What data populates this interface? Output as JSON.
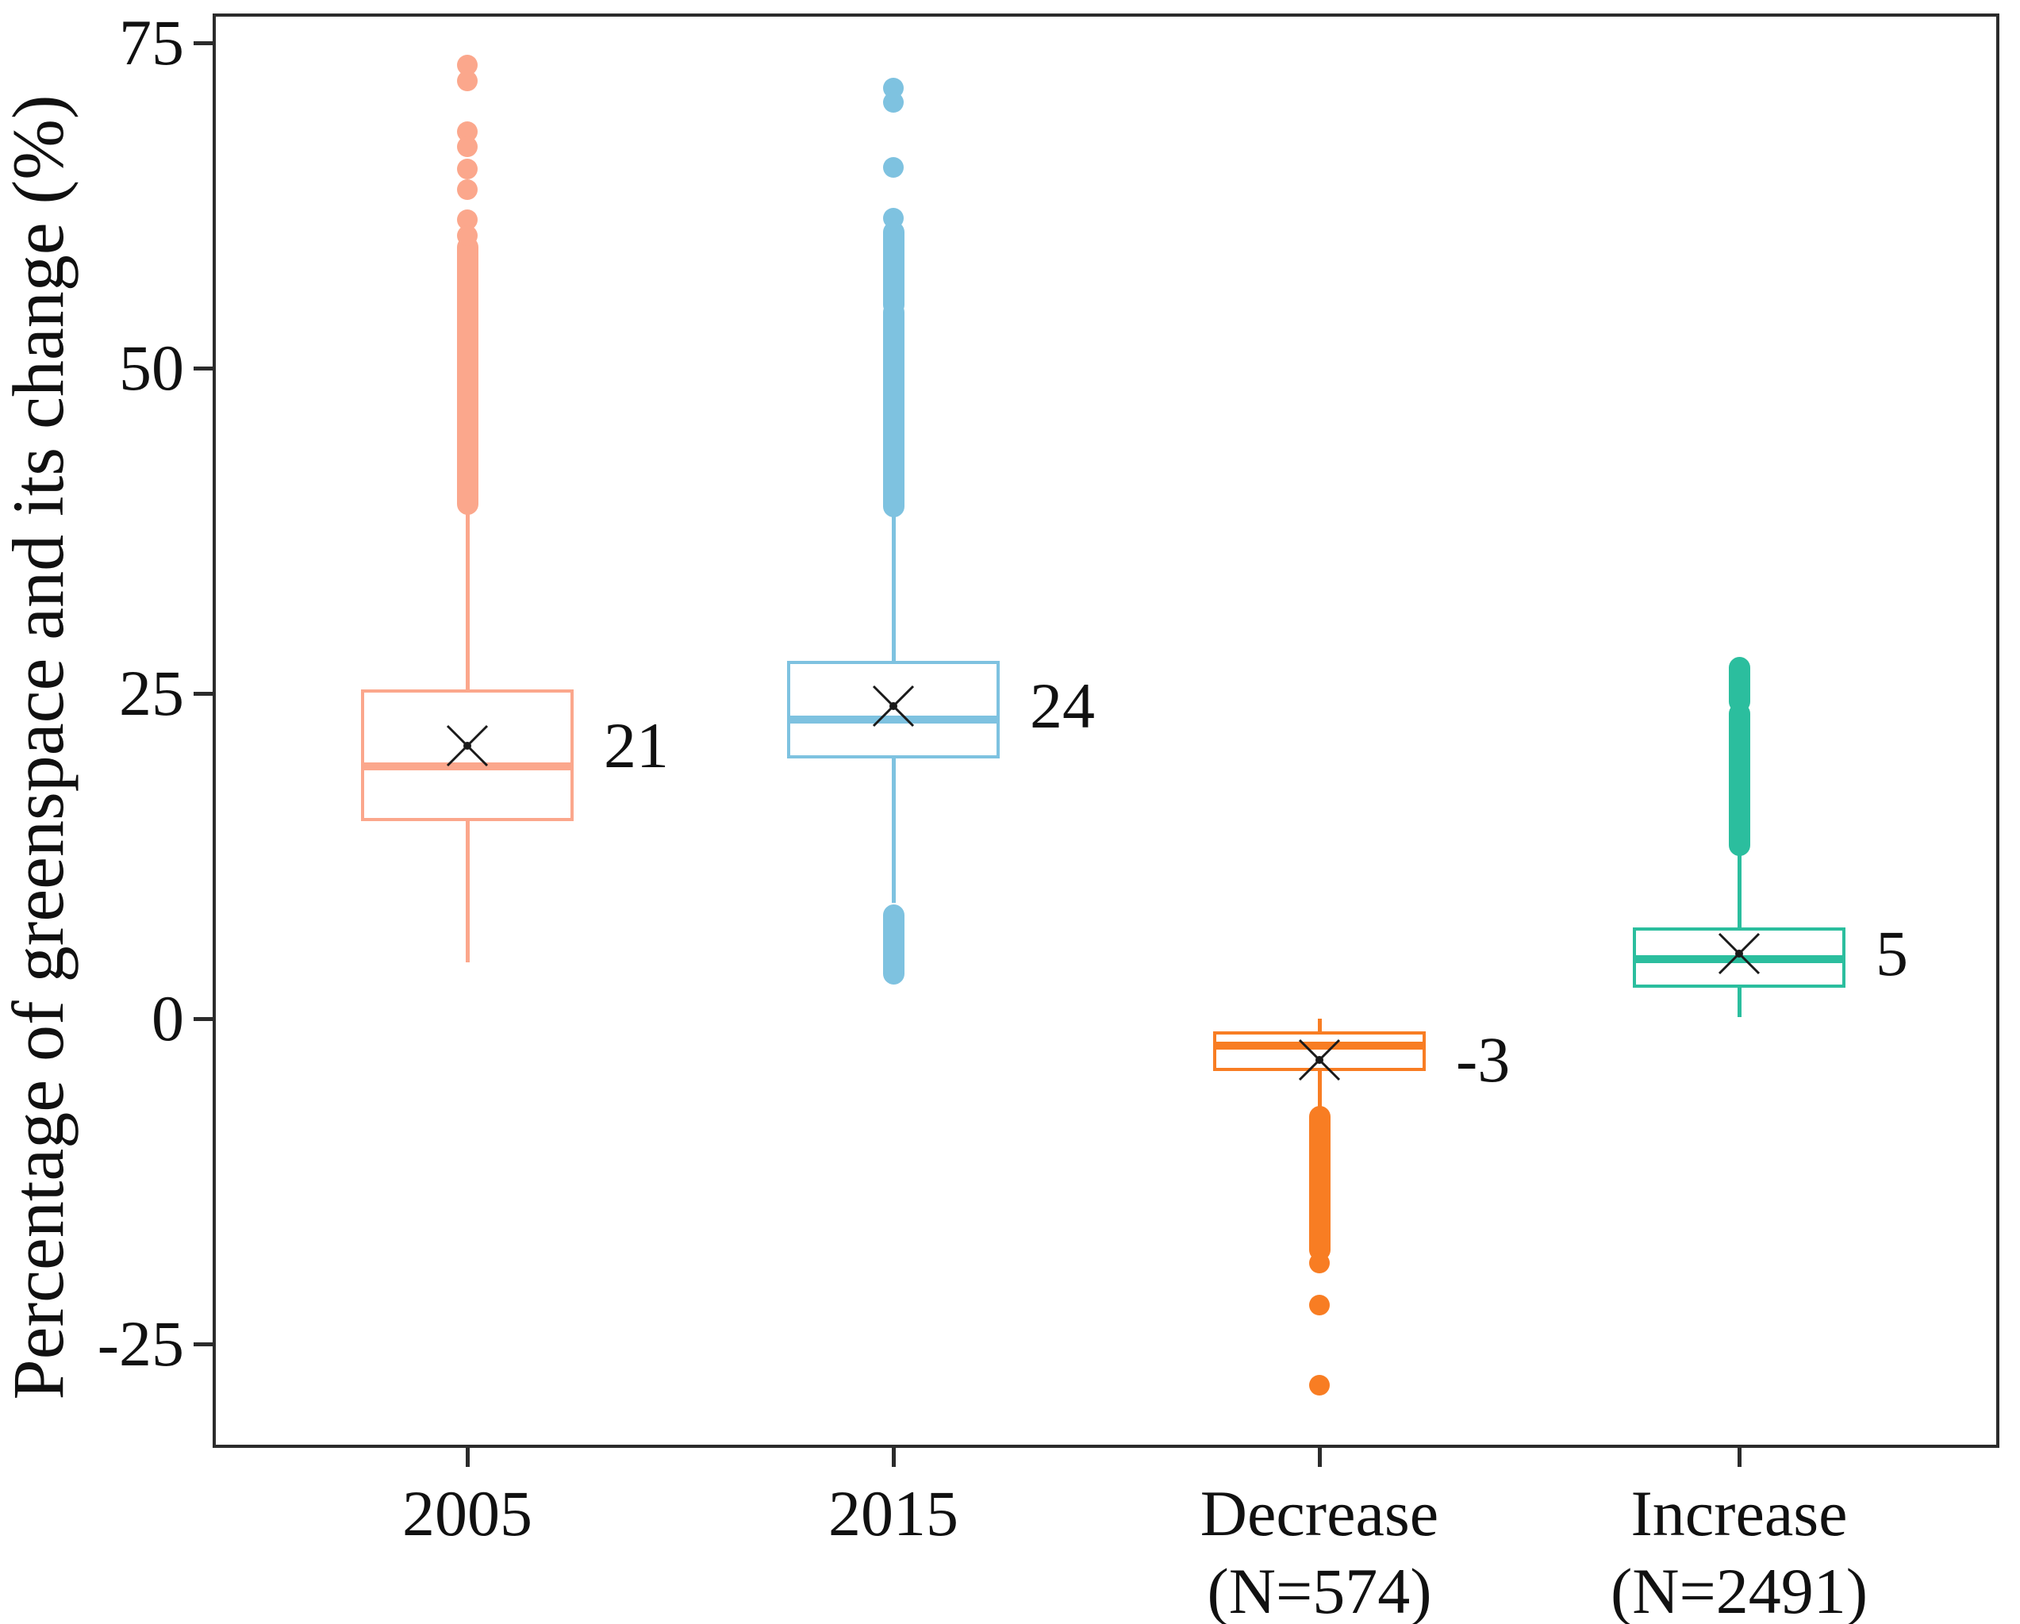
{
  "chart_data": {
    "type": "boxplot",
    "title": "",
    "ylabel": "Percentage of greenspace and its change (%)",
    "xlabel": "",
    "ylim": [
      -33,
      77.3
    ],
    "grid": "off",
    "y_ticks": [
      {
        "value": 75,
        "label": "75"
      },
      {
        "value": 50,
        "label": "50"
      },
      {
        "value": 25,
        "label": "25"
      },
      {
        "value": 0,
        "label": "0"
      },
      {
        "value": -25,
        "label": "-25"
      }
    ],
    "groups": [
      {
        "name": "2005",
        "label_lines": [
          "2005"
        ],
        "color": "#FBA78C",
        "q1": 15.2,
        "median": 19.4,
        "q3": 25.3,
        "whisker_low": 4.3,
        "whisker_high": 39.5,
        "mean": 21,
        "mean_label": "21",
        "outlier_dots": [
          73.3,
          72.1,
          68.2,
          67.0,
          65.3,
          63.7,
          61.4,
          60.2
        ],
        "outlier_bars": [
          [
            39.5,
            59.3
          ]
        ]
      },
      {
        "name": "2015",
        "label_lines": [
          "2015"
        ],
        "color": "#7EC2E0",
        "q1": 20.0,
        "median": 23.0,
        "q3": 27.5,
        "whisker_low": 8.9,
        "whisker_high": 39.3,
        "mean": 24,
        "mean_label": "24",
        "outlier_dots": [
          71.5,
          70.4,
          65.4,
          61.5
        ],
        "outlier_bars": [
          [
            54.8,
            60.5
          ],
          [
            39.3,
            54.3
          ],
          [
            3.4,
            8.0
          ]
        ]
      },
      {
        "name": "Decrease",
        "label_lines": [
          "Decrease",
          "(N=574)"
        ],
        "color": "#F87D23",
        "q1": -4.0,
        "median": -2.1,
        "q3": -1.0,
        "whisker_low": -7.7,
        "whisker_high": 0.0,
        "mean": -3.2,
        "mean_label": "-3",
        "outlier_dots": [
          -18.8,
          -22.0,
          -28.2
        ],
        "outlier_bars": [
          [
            -17.8,
            -7.5
          ]
        ]
      },
      {
        "name": "Increase",
        "label_lines": [
          "Increase",
          "(N=2491)"
        ],
        "color": "#2BBE9E",
        "q1": 2.4,
        "median": 4.6,
        "q3": 7.0,
        "whisker_low": 0.1,
        "whisker_high": 12.9,
        "mean": 5,
        "mean_label": "5",
        "outlier_dots": [],
        "outlier_bars": [
          [
            24.3,
            27.0
          ],
          [
            13.3,
            23.5
          ]
        ]
      }
    ]
  }
}
